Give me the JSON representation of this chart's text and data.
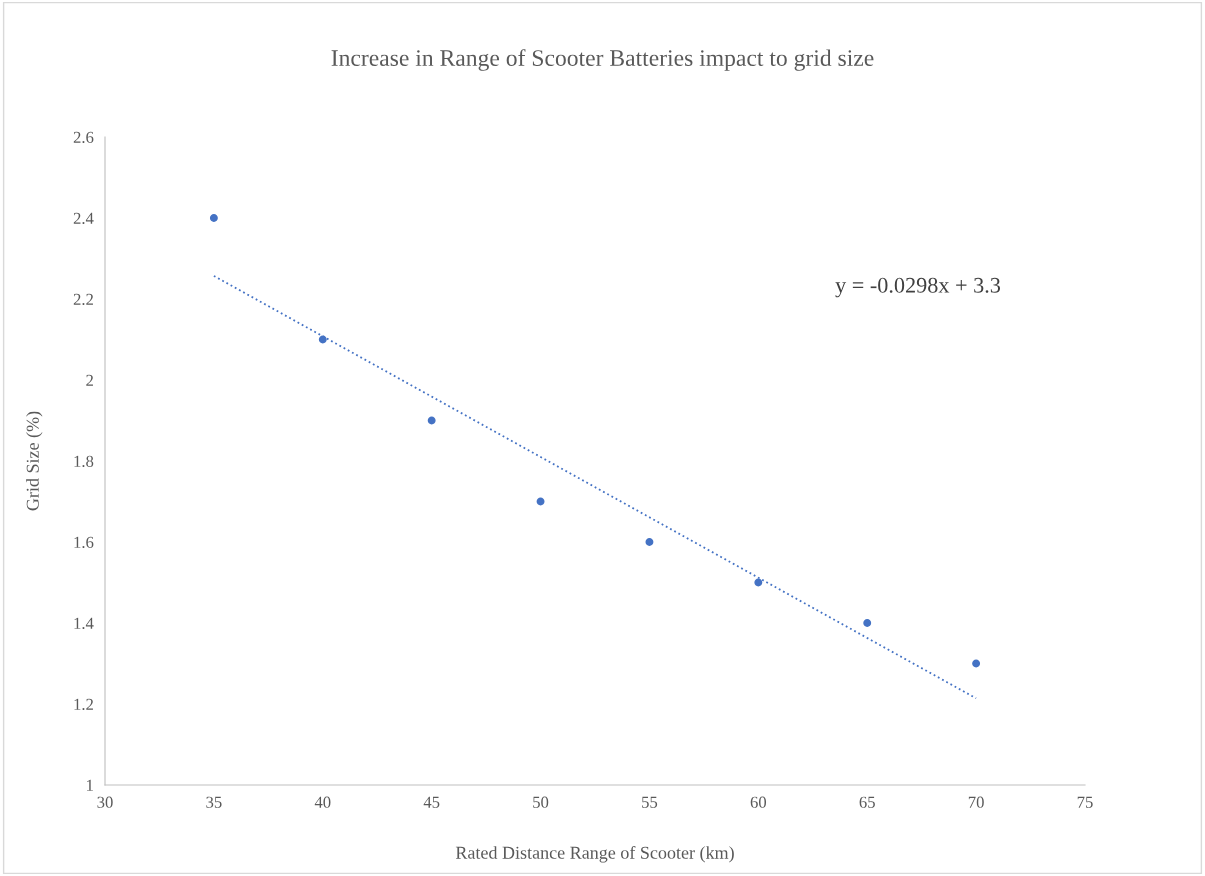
{
  "chart_data": {
    "type": "scatter",
    "title": "Increase in Range of Scooter Batteries impact to grid size",
    "xlabel": "Rated Distance Range of Scooter (km)",
    "ylabel": "Grid Size (%)",
    "series": [
      {
        "color": "#4472c4",
        "marker": "circle",
        "x": [
          35,
          40,
          45,
          50,
          55,
          60,
          65,
          70
        ],
        "values": [
          2.4,
          2.1,
          1.9,
          1.7,
          1.6,
          1.5,
          1.4,
          1.3
        ]
      },
      {
        "type": "line",
        "color": "#4472c4",
        "line_style": "dotted",
        "marker": "none",
        "x": [
          35,
          70
        ],
        "values": [
          2.257,
          1.214
        ]
      }
    ],
    "annotations": [
      "y = -0.0298x + 3.3"
    ],
    "xlim": [
      30,
      75
    ],
    "xticks": [
      30,
      35,
      40,
      45,
      50,
      55,
      60,
      65,
      70,
      75
    ],
    "ylim": [
      1,
      2.6
    ],
    "yticks": [
      1,
      1.2,
      1.4,
      1.6,
      1.8,
      2,
      2.2,
      2.4,
      2.6
    ],
    "grid": false,
    "legend": false
  }
}
